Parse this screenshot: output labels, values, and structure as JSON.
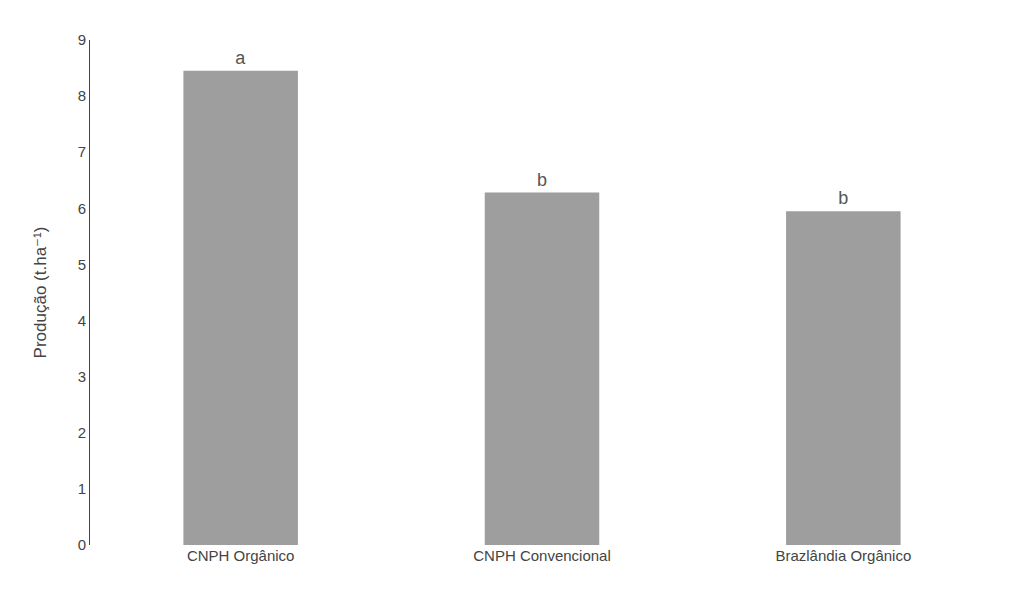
{
  "chart_data": {
    "type": "bar",
    "categories": [
      "CNPH Orgânico",
      "CNPH Convencional",
      "Brazlândia Orgânico"
    ],
    "values": [
      8.45,
      6.28,
      5.95
    ],
    "annotations": [
      "a",
      "b",
      "b"
    ],
    "color": "#9e9e9e",
    "ylabel": "Produção (t.ha⁻¹)",
    "ylim": [
      0,
      9
    ],
    "yticks": [
      0,
      1,
      2,
      3,
      4,
      5,
      6,
      7,
      8,
      9
    ],
    "grid": false
  }
}
